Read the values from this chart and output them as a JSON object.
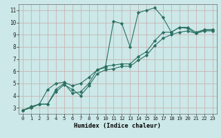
{
  "xlabel": "Humidex (Indice chaleur)",
  "xlim": [
    -0.5,
    23.5
  ],
  "ylim": [
    2.5,
    11.5
  ],
  "xticks": [
    0,
    1,
    2,
    3,
    4,
    5,
    6,
    7,
    8,
    9,
    10,
    11,
    12,
    13,
    14,
    15,
    16,
    17,
    18,
    19,
    20,
    21,
    22,
    23
  ],
  "yticks": [
    3,
    4,
    5,
    6,
    7,
    8,
    9,
    10,
    11
  ],
  "bg_color": "#cce8e8",
  "grid_color": "#c8aaaa",
  "line_color": "#2a7060",
  "line1": {
    "x": [
      0,
      1,
      2,
      3,
      4,
      5,
      6,
      7,
      8,
      9,
      10,
      11,
      12,
      13,
      14,
      15,
      16,
      17,
      18,
      19,
      20,
      21,
      22,
      23
    ],
    "y": [
      2.8,
      3.1,
      3.3,
      3.3,
      4.5,
      5.0,
      4.2,
      4.3,
      5.0,
      6.1,
      6.3,
      10.1,
      9.9,
      8.0,
      10.8,
      11.0,
      11.2,
      10.4,
      9.2,
      9.6,
      9.5,
      9.1,
      9.4,
      9.4
    ]
  },
  "line2": {
    "x": [
      0,
      1,
      2,
      3,
      4,
      5,
      6,
      7,
      8,
      9,
      10,
      11,
      12,
      13,
      14,
      15,
      16,
      17,
      18,
      19,
      20,
      21,
      22,
      23
    ],
    "y": [
      2.8,
      3.0,
      3.3,
      4.5,
      5.0,
      5.1,
      4.8,
      5.0,
      5.5,
      6.1,
      6.4,
      6.5,
      6.6,
      6.6,
      7.2,
      7.6,
      8.5,
      9.2,
      9.2,
      9.6,
      9.6,
      9.2,
      9.4,
      9.4
    ]
  },
  "line3": {
    "x": [
      0,
      1,
      2,
      3,
      4,
      5,
      6,
      7,
      8,
      9,
      10,
      11,
      12,
      13,
      14,
      15,
      16,
      17,
      18,
      19,
      20,
      21,
      22,
      23
    ],
    "y": [
      2.8,
      3.0,
      3.3,
      3.3,
      4.3,
      4.9,
      4.5,
      4.0,
      4.8,
      5.8,
      6.1,
      6.2,
      6.4,
      6.4,
      6.9,
      7.3,
      8.1,
      8.7,
      9.0,
      9.2,
      9.3,
      9.1,
      9.3,
      9.3
    ]
  }
}
